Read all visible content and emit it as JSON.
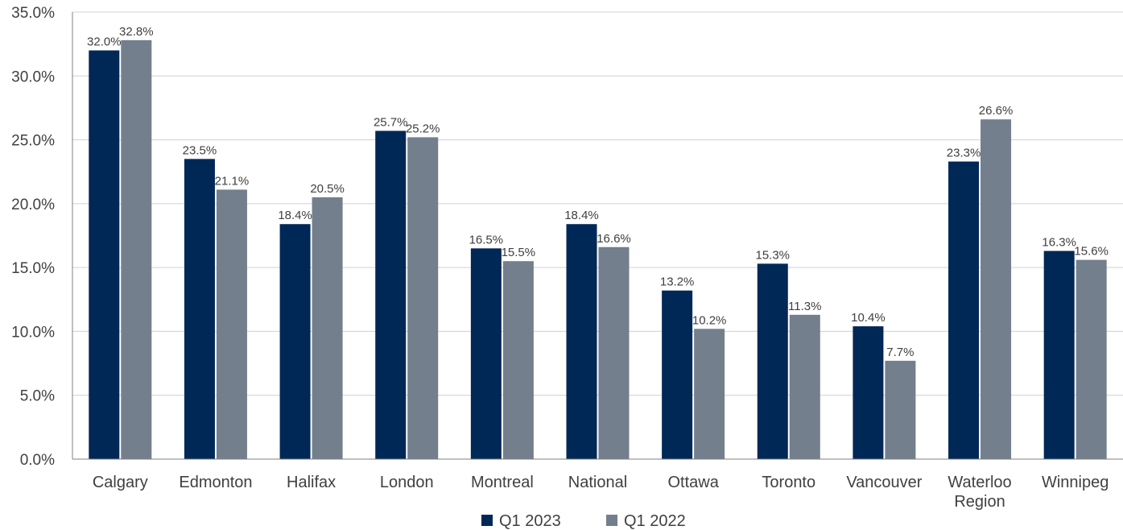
{
  "chart_data": {
    "type": "bar",
    "categories": [
      "Calgary",
      "Edmonton",
      "Halifax",
      "London",
      "Montreal",
      "National",
      "Ottawa",
      "Toronto",
      "Vancouver",
      "Waterloo Region",
      "Winnipeg"
    ],
    "series": [
      {
        "name": "Q1 2023",
        "color": "#002856",
        "values": [
          32.0,
          23.5,
          18.4,
          25.7,
          16.5,
          18.4,
          13.2,
          15.3,
          10.4,
          23.3,
          16.3
        ],
        "labels": [
          "32.0%",
          "23.5%",
          "18.4%",
          "25.7%",
          "16.5%",
          "18.4%",
          "13.2%",
          "15.3%",
          "10.4%",
          "23.3%",
          "16.3%"
        ]
      },
      {
        "name": "Q1 2022",
        "color": "#737f8c",
        "values": [
          32.8,
          21.1,
          20.5,
          25.2,
          15.5,
          16.6,
          10.2,
          11.3,
          7.7,
          26.6,
          15.6
        ],
        "labels": [
          "32.8%",
          "21.1%",
          "20.5%",
          "25.2%",
          "15.5%",
          "16.6%",
          "10.2%",
          "11.3%",
          "7.7%",
          "26.6%",
          "15.6%"
        ]
      }
    ],
    "ylim": [
      0,
      35
    ],
    "yticks": [
      0,
      5,
      10,
      15,
      20,
      25,
      30,
      35
    ],
    "ytick_labels": [
      "0.0%",
      "5.0%",
      "10.0%",
      "15.0%",
      "20.0%",
      "25.0%",
      "30.0%",
      "35.0%"
    ],
    "grid": true,
    "legend_position": "bottom-center",
    "title": "",
    "xlabel": "",
    "ylabel": ""
  }
}
